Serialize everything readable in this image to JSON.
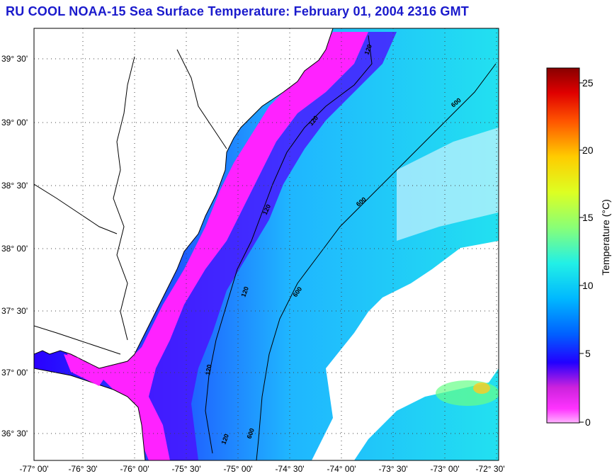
{
  "title": "RU COOL  NOAA-15  Sea Surface Temperature:  February 01, 2004 2316 GMT",
  "map": {
    "lat_labels": [
      "39° 30'",
      "39° 00'",
      "38° 30'",
      "38° 00'",
      "37° 30'",
      "37° 00'",
      "36° 30'"
    ],
    "lon_labels": [
      "-77° 00'",
      "-76° 30'",
      "-76° 00'",
      "-75° 30'",
      "-75° 00'",
      "-74° 30'",
      "-74° 00'",
      "-73° 30'",
      "-73° 00'",
      "-72° 30'"
    ],
    "contours": [
      {
        "label": "120"
      },
      {
        "label": "120"
      },
      {
        "label": "120"
      },
      {
        "label": "120"
      },
      {
        "label": "120"
      },
      {
        "label": "120"
      },
      {
        "label": "600"
      },
      {
        "label": "600"
      },
      {
        "label": "600"
      },
      {
        "label": "600"
      }
    ],
    "land_color": "#ffffee"
  },
  "colorbar": {
    "title": "Temperature (°C)",
    "ticks": [
      "25",
      "20",
      "15",
      "10",
      "5",
      "0"
    ],
    "range": [
      0,
      26
    ],
    "colors": [
      "#ff99ff",
      "#ff33ff",
      "#cc22dd",
      "#0000ff",
      "#1e6cff",
      "#00ccff",
      "#33ffcc",
      "#99ff66",
      "#ffff00",
      "#ff9900",
      "#ff0000",
      "#880000"
    ]
  }
}
